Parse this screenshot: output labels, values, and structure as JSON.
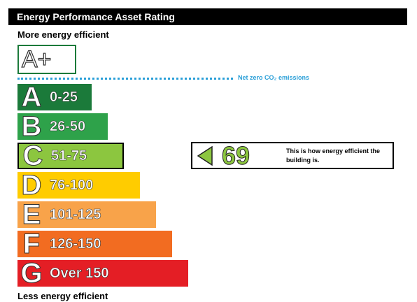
{
  "header": {
    "title": "Energy Performance Asset Rating"
  },
  "top_label": "More energy efficient",
  "bottom_label": "Less energy efficient",
  "aplus": "A+",
  "net_zero": "Net zero CO₂ emissions",
  "bands": [
    {
      "letter": "A",
      "range": "0-25",
      "color": "#1b7a3a"
    },
    {
      "letter": "B",
      "range": "26-50",
      "color": "#2ea24a"
    },
    {
      "letter": "C",
      "range": "51-75",
      "color": "#8cc63f",
      "highlighted": true
    },
    {
      "letter": "D",
      "range": "76-100",
      "color": "#ffcc00"
    },
    {
      "letter": "E",
      "range": "101-125",
      "color": "#f8a34a"
    },
    {
      "letter": "F",
      "range": "126-150",
      "color": "#f26c21"
    },
    {
      "letter": "G",
      "range": "Over 150",
      "color": "#e41e25"
    }
  ],
  "rating": {
    "value": 69,
    "text": "This is how energy efficient the building is."
  }
}
